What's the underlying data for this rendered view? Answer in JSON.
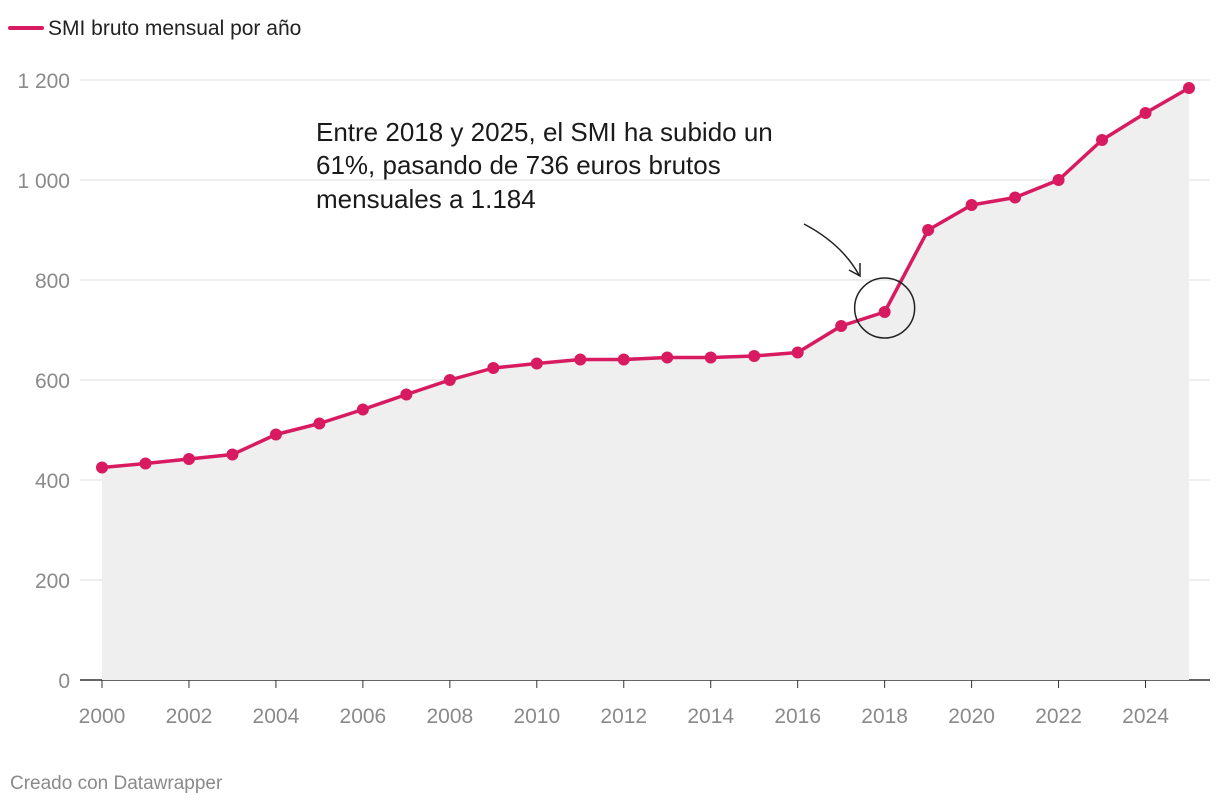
{
  "chart_data": {
    "type": "area",
    "title": "",
    "legend": [
      {
        "name": "SMI bruto mensual por año",
        "color": "#d81b60"
      }
    ],
    "series": [
      {
        "name": "SMI bruto mensual por año",
        "color": "#d81b60",
        "x": [
          2000,
          2001,
          2002,
          2003,
          2004,
          2005,
          2006,
          2007,
          2008,
          2009,
          2010,
          2011,
          2012,
          2013,
          2014,
          2015,
          2016,
          2017,
          2018,
          2019,
          2020,
          2021,
          2022,
          2023,
          2024,
          2025
        ],
        "values": [
          425,
          433,
          442,
          451,
          491,
          513,
          541,
          571,
          600,
          624,
          633,
          641,
          641,
          645,
          645,
          648,
          655,
          708,
          736,
          900,
          950,
          965,
          1000,
          1080,
          1134,
          1184
        ]
      }
    ],
    "xlabel": "",
    "ylabel": "",
    "xlim": [
      2000,
      2025
    ],
    "ylim": [
      0,
      1200
    ],
    "x_ticks": [
      "2000",
      "2002",
      "2004",
      "2006",
      "2008",
      "2010",
      "2012",
      "2014",
      "2016",
      "2018",
      "2020",
      "2022",
      "2024"
    ],
    "y_ticks": [
      {
        "value": 0,
        "label": "0"
      },
      {
        "value": 200,
        "label": "200"
      },
      {
        "value": 400,
        "label": "400"
      },
      {
        "value": 600,
        "label": "600"
      },
      {
        "value": 800,
        "label": "800"
      },
      {
        "value": 1000,
        "label": "1 000"
      },
      {
        "value": 1200,
        "label": "1 200"
      }
    ],
    "annotation": {
      "lines": [
        "Entre 2018 y 2025, el SMI ha subido un",
        "61%, pasando de 736 euros brutos",
        "mensuales a 1.184"
      ],
      "highlight_year": 2018,
      "highlight_value": 736
    },
    "area_fill": "#efefef",
    "grid": true
  },
  "footer": {
    "credit": "Creado con Datawrapper"
  }
}
